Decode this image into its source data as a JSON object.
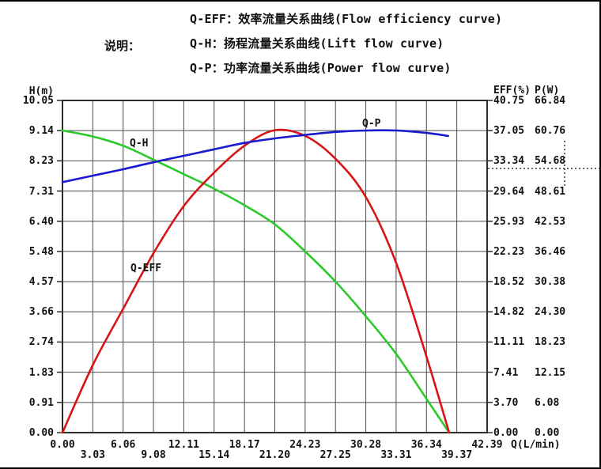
{
  "header": {
    "caption": "说明：",
    "legend_lines": [
      "Q-EFF：效率流量关系曲线(Flow efficiency curve)",
      "Q-H：扬程流量关系曲线(Lift flow curve)",
      "Q-P：功率流量关系曲线(Power flow curve)"
    ]
  },
  "axes": {
    "left": {
      "title": "H(m)",
      "ticks": [
        "10.05",
        "9.14",
        "8.23",
        "7.31",
        "6.40",
        "5.48",
        "4.57",
        "3.66",
        "2.74",
        "1.83",
        "0.91",
        "0.00"
      ]
    },
    "right_eff": {
      "title": "EFF(%)",
      "ticks": [
        "40.75",
        "37.05",
        "33.34",
        "29.64",
        "25.93",
        "22.23",
        "18.52",
        "14.82",
        "11.11",
        "7.41",
        "3.70",
        "0.00"
      ]
    },
    "right_p": {
      "title": "P(W)",
      "ticks": [
        "66.84",
        "60.76",
        "54.68",
        "48.61",
        "42.53",
        "36.46",
        "30.38",
        "24.30",
        "18.23",
        "12.15",
        "6.08",
        "0.00"
      ]
    },
    "x": {
      "title": "Q(L/min)",
      "ticks": [
        "0.00",
        "3.03",
        "6.06",
        "9.08",
        "12.11",
        "15.14",
        "18.17",
        "21.20",
        "24.23",
        "27.25",
        "30.28",
        "33.31",
        "36.34",
        "39.37",
        "42.39"
      ]
    }
  },
  "curve_labels": {
    "qh": "Q-H",
    "qeff": "Q-EFF",
    "qp": "Q-P"
  },
  "chart_data": {
    "type": "line",
    "title": "",
    "xlabel": "Q(L/min)",
    "x_range": [
      0,
      42.39
    ],
    "grid": true,
    "axis_ranges": {
      "H": [
        0,
        10.05
      ],
      "EFF": [
        0,
        40.75
      ],
      "P": [
        0,
        66.84
      ]
    },
    "series": [
      {
        "name": "Q-H",
        "axis": "H",
        "scale_max": 10.05,
        "color": "#2bc92b",
        "x": [
          0,
          3.03,
          6.06,
          9.08,
          12.11,
          15.14,
          18.17,
          21.2,
          24.23,
          27.25,
          30.28,
          33.31,
          36.34,
          38.6
        ],
        "y": [
          9.14,
          8.96,
          8.68,
          8.26,
          7.82,
          7.38,
          6.88,
          6.3,
          5.48,
          4.57,
          3.52,
          2.38,
          1.02,
          0.0
        ]
      },
      {
        "name": "Q-EFF",
        "axis": "EFF",
        "scale_max": 40.75,
        "color": "#d81414",
        "x": [
          0,
          3.03,
          6.06,
          9.08,
          12.11,
          15.14,
          18.17,
          21.2,
          24.23,
          27.25,
          30.28,
          33.31,
          36.34,
          38.6
        ],
        "y": [
          0.0,
          8.3,
          15.2,
          22.0,
          27.8,
          31.9,
          35.2,
          37.1,
          36.4,
          33.6,
          28.9,
          20.8,
          9.3,
          0.0
        ]
      },
      {
        "name": "Q-P",
        "axis": "P",
        "scale_max": 66.84,
        "color": "#1a1ace",
        "x": [
          0,
          3.03,
          6.06,
          9.08,
          12.11,
          15.14,
          18.17,
          21.2,
          24.23,
          27.25,
          30.28,
          33.31,
          36.34,
          38.5
        ],
        "y": [
          50.4,
          51.7,
          53.0,
          54.4,
          55.7,
          57.0,
          58.3,
          59.2,
          59.9,
          60.5,
          60.8,
          60.8,
          60.3,
          59.7
        ]
      }
    ]
  }
}
